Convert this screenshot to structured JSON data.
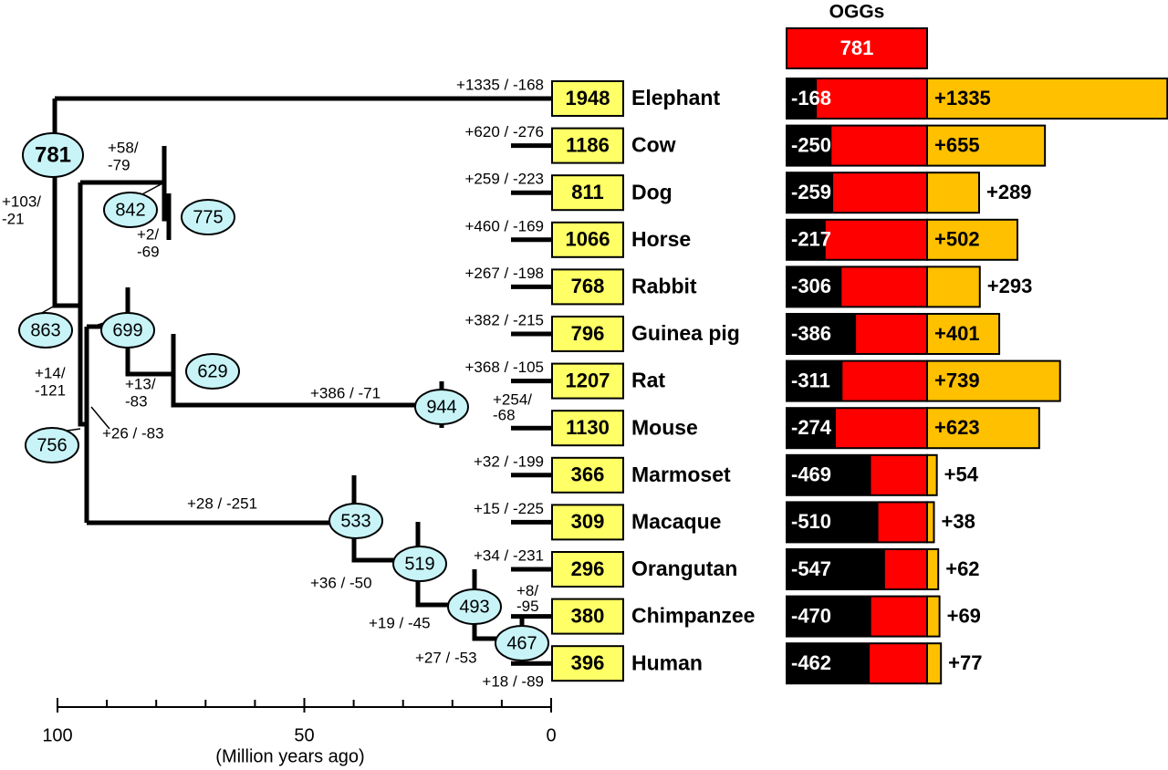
{
  "title": "OGGs",
  "root_count": "781",
  "species": [
    {
      "name": "Elephant",
      "count": "1948",
      "branch": [
        "+1335 / -168"
      ],
      "loss": "-168",
      "gain": "+1335"
    },
    {
      "name": "Cow",
      "count": "1186",
      "branch": [
        "+620 / -276"
      ],
      "loss": "-250",
      "gain": "+655"
    },
    {
      "name": "Dog",
      "count": "811",
      "branch": [
        "+259 / -223"
      ],
      "loss": "-259",
      "gain": "+289"
    },
    {
      "name": "Horse",
      "count": "1066",
      "branch": [
        "+460 / -169"
      ],
      "loss": "-217",
      "gain": "+502"
    },
    {
      "name": "Rabbit",
      "count": "768",
      "branch": [
        "+267 / -198"
      ],
      "loss": "-306",
      "gain": "+293"
    },
    {
      "name": "Guinea pig",
      "count": "796",
      "branch": [
        "+382 / -215"
      ],
      "loss": "-386",
      "gain": "+401"
    },
    {
      "name": "Rat",
      "count": "1207",
      "branch": [
        "+368 / -105"
      ],
      "loss": "-311",
      "gain": "+739"
    },
    {
      "name": "Mouse",
      "count": "1130",
      "branch": [
        "+254/",
        "-68"
      ],
      "loss": "-274",
      "gain": "+623"
    },
    {
      "name": "Marmoset",
      "count": "366",
      "branch": [
        "+32 / -199"
      ],
      "loss": "-469",
      "gain": "+54"
    },
    {
      "name": "Macaque",
      "count": "309",
      "branch": [
        "+15 / -225"
      ],
      "loss": "-510",
      "gain": "+38"
    },
    {
      "name": "Orangutan",
      "count": "296",
      "branch": [
        "+34 / -231"
      ],
      "loss": "-547",
      "gain": "+62"
    },
    {
      "name": "Chimpanzee",
      "count": "380",
      "branch": [
        "+8/",
        "-95"
      ],
      "loss": "-470",
      "gain": "+69"
    },
    {
      "name": "Human",
      "count": "396",
      "branch": [
        "+18 / -89"
      ],
      "loss": "-462",
      "gain": "+77"
    }
  ],
  "nodes": [
    {
      "label": "781",
      "branch": []
    },
    {
      "label": "842",
      "branch": [
        "+58/",
        "-79"
      ]
    },
    {
      "label": "775",
      "branch": [
        "+2/",
        "-69"
      ]
    },
    {
      "label": "863",
      "branch": [
        "+103/",
        "-21"
      ]
    },
    {
      "label": "699",
      "branch": [
        "+14/",
        "-121"
      ]
    },
    {
      "label": "629",
      "branch": [
        "+13/",
        "-83"
      ]
    },
    {
      "label": "944",
      "branch": [
        "+386 / -71"
      ]
    },
    {
      "label": "756",
      "branch": [
        "+26 / -83"
      ]
    },
    {
      "label": "533",
      "branch": [
        "+28 / -251"
      ]
    },
    {
      "label": "519",
      "branch": [
        "+36 / -50"
      ]
    },
    {
      "label": "493",
      "branch": [
        "+19 / -45"
      ]
    },
    {
      "label": "467",
      "branch": [
        "+27 / -53"
      ]
    }
  ],
  "axis": {
    "ticks": [
      "100",
      "50",
      "0"
    ],
    "label": "(Million years ago)"
  }
}
